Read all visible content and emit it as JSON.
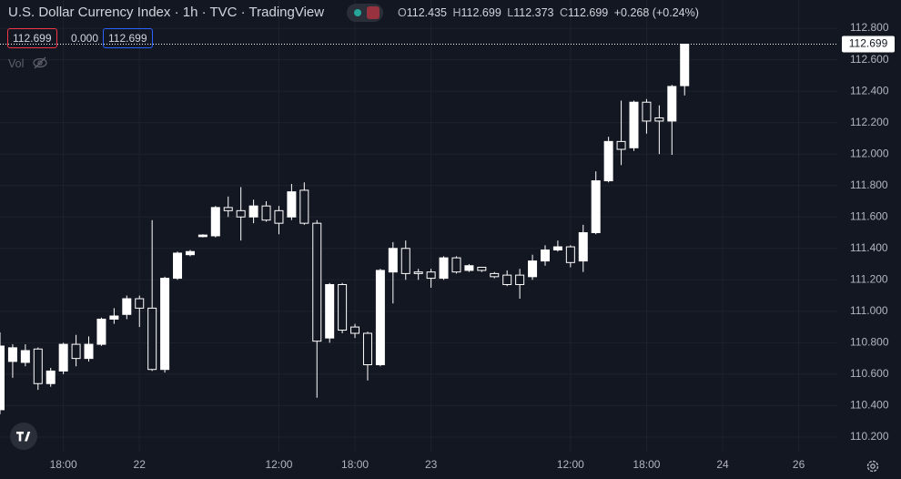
{
  "header": {
    "symbol": "U.S. Dollar Currency Index · 1h · TVC · TradingView",
    "ohlc": [
      {
        "key": "O",
        "value": "112.435"
      },
      {
        "key": "H",
        "value": "112.699"
      },
      {
        "key": "L",
        "value": "112.373"
      },
      {
        "key": "C",
        "value": "112.699"
      }
    ],
    "change": "+0.268 (+0.24%)",
    "bid": "112.699",
    "spread": "0.000",
    "ask": "112.699",
    "volume_label": "Vol"
  },
  "chart_data": {
    "type": "candlestick",
    "categories": [
      null,
      null,
      null,
      null,
      null,
      "18:00",
      null,
      null,
      null,
      null,
      null,
      "22",
      null,
      null,
      null,
      null,
      null,
      null,
      null,
      null,
      null,
      null,
      "12:00",
      null,
      null,
      null,
      null,
      null,
      "18:00",
      null,
      null,
      null,
      null,
      null,
      "23",
      null,
      null,
      null,
      null,
      null,
      null,
      null,
      null,
      null,
      null,
      "12:00",
      null,
      null,
      null,
      null,
      null,
      "18:00",
      null,
      null,
      null,
      null,
      null,
      "24",
      null,
      null,
      null,
      null,
      null,
      "26"
    ],
    "open": [
      110.374,
      110.681,
      110.675,
      110.76,
      110.54,
      110.62,
      110.79,
      110.7,
      110.79,
      110.95,
      110.98,
      111.08,
      111.02,
      110.63,
      111.21,
      111.36,
      111.475,
      111.48,
      111.66,
      111.64,
      111.6,
      111.67,
      111.64,
      111.6,
      111.77,
      111.56,
      110.83,
      111.17,
      110.9,
      110.86,
      110.66,
      111.25,
      111.4,
      111.25,
      111.25,
      111.21,
      111.34,
      111.26,
      111.28,
      111.24,
      111.23,
      111.23,
      111.22,
      111.32,
      111.39,
      111.41,
      111.32,
      111.5,
      111.83,
      112.08,
      112.04,
      112.33,
      112.23,
      112.21,
      112.435,
      null,
      null,
      null,
      null,
      null,
      null,
      null,
      null,
      null
    ],
    "high": [
      110.866,
      110.791,
      110.79,
      110.77,
      110.64,
      110.8,
      110.85,
      110.84,
      110.96,
      111.02,
      111.1,
      111.1,
      111.58,
      111.22,
      111.38,
      111.39,
      111.49,
      111.67,
      111.73,
      111.79,
      111.71,
      111.7,
      111.67,
      111.81,
      111.82,
      111.58,
      111.18,
      111.18,
      110.92,
      110.87,
      111.27,
      111.44,
      111.45,
      111.27,
      111.27,
      111.35,
      111.35,
      111.3,
      111.28,
      111.25,
      111.26,
      111.27,
      111.36,
      111.42,
      111.45,
      111.42,
      111.55,
      111.89,
      112.11,
      112.34,
      112.34,
      112.35,
      112.31,
      112.44,
      112.699,
      null,
      null,
      null,
      null,
      null,
      null,
      null,
      null,
      null
    ],
    "low": [
      110.345,
      110.577,
      110.65,
      110.5,
      110.52,
      110.6,
      110.65,
      110.68,
      110.78,
      110.92,
      110.95,
      110.9,
      110.62,
      110.61,
      111.2,
      111.35,
      111.47,
      111.47,
      111.6,
      111.45,
      111.56,
      111.57,
      111.49,
      111.58,
      111.55,
      110.45,
      110.8,
      110.86,
      110.83,
      110.56,
      110.65,
      111.05,
      111.2,
      111.2,
      111.15,
      111.2,
      111.24,
      111.25,
      111.25,
      111.21,
      111.16,
      111.08,
      111.2,
      111.29,
      111.38,
      111.28,
      111.25,
      111.49,
      111.82,
      111.93,
      112.02,
      112.13,
      112.0,
      111.995,
      112.373,
      null,
      null,
      null,
      null,
      null,
      null,
      null,
      null,
      null
    ],
    "close": [
      110.779,
      110.768,
      110.75,
      110.54,
      110.62,
      110.79,
      110.7,
      110.79,
      110.95,
      110.97,
      111.08,
      111.02,
      110.63,
      111.21,
      111.37,
      111.38,
      111.485,
      111.66,
      111.64,
      111.6,
      111.67,
      111.58,
      111.56,
      111.76,
      111.56,
      110.81,
      111.17,
      110.88,
      110.86,
      110.66,
      111.26,
      111.4,
      111.24,
      111.24,
      111.21,
      111.34,
      111.25,
      111.29,
      111.26,
      111.22,
      111.17,
      111.17,
      111.32,
      111.39,
      111.41,
      111.31,
      111.5,
      111.83,
      112.08,
      112.03,
      112.33,
      112.21,
      112.21,
      112.43,
      112.699,
      null,
      null,
      null,
      null,
      null,
      null,
      null,
      null,
      null
    ],
    "up_color": "#ffffff",
    "down_color": "#131722",
    "border_color": "#ffffff",
    "ylim": [
      110.107,
      112.98
    ],
    "yticks": [
      {
        "value": 110.2,
        "label": "110.200"
      },
      {
        "value": 110.4,
        "label": "110.400"
      },
      {
        "value": 110.6,
        "label": "110.600"
      },
      {
        "value": 110.8,
        "label": "110.800"
      },
      {
        "value": 111.0,
        "label": "111.000"
      },
      {
        "value": 111.2,
        "label": "111.200"
      },
      {
        "value": 111.4,
        "label": "111.400"
      },
      {
        "value": 111.6,
        "label": "111.600"
      },
      {
        "value": 111.8,
        "label": "111.800"
      },
      {
        "value": 112.0,
        "label": "112.000"
      },
      {
        "value": 112.2,
        "label": "112.200"
      },
      {
        "value": 112.4,
        "label": "112.400"
      },
      {
        "value": 112.6,
        "label": "112.600"
      },
      {
        "value": 112.8,
        "label": "112.800"
      }
    ],
    "last_price": {
      "value": 112.699,
      "label": "112.699"
    },
    "grid": true
  }
}
